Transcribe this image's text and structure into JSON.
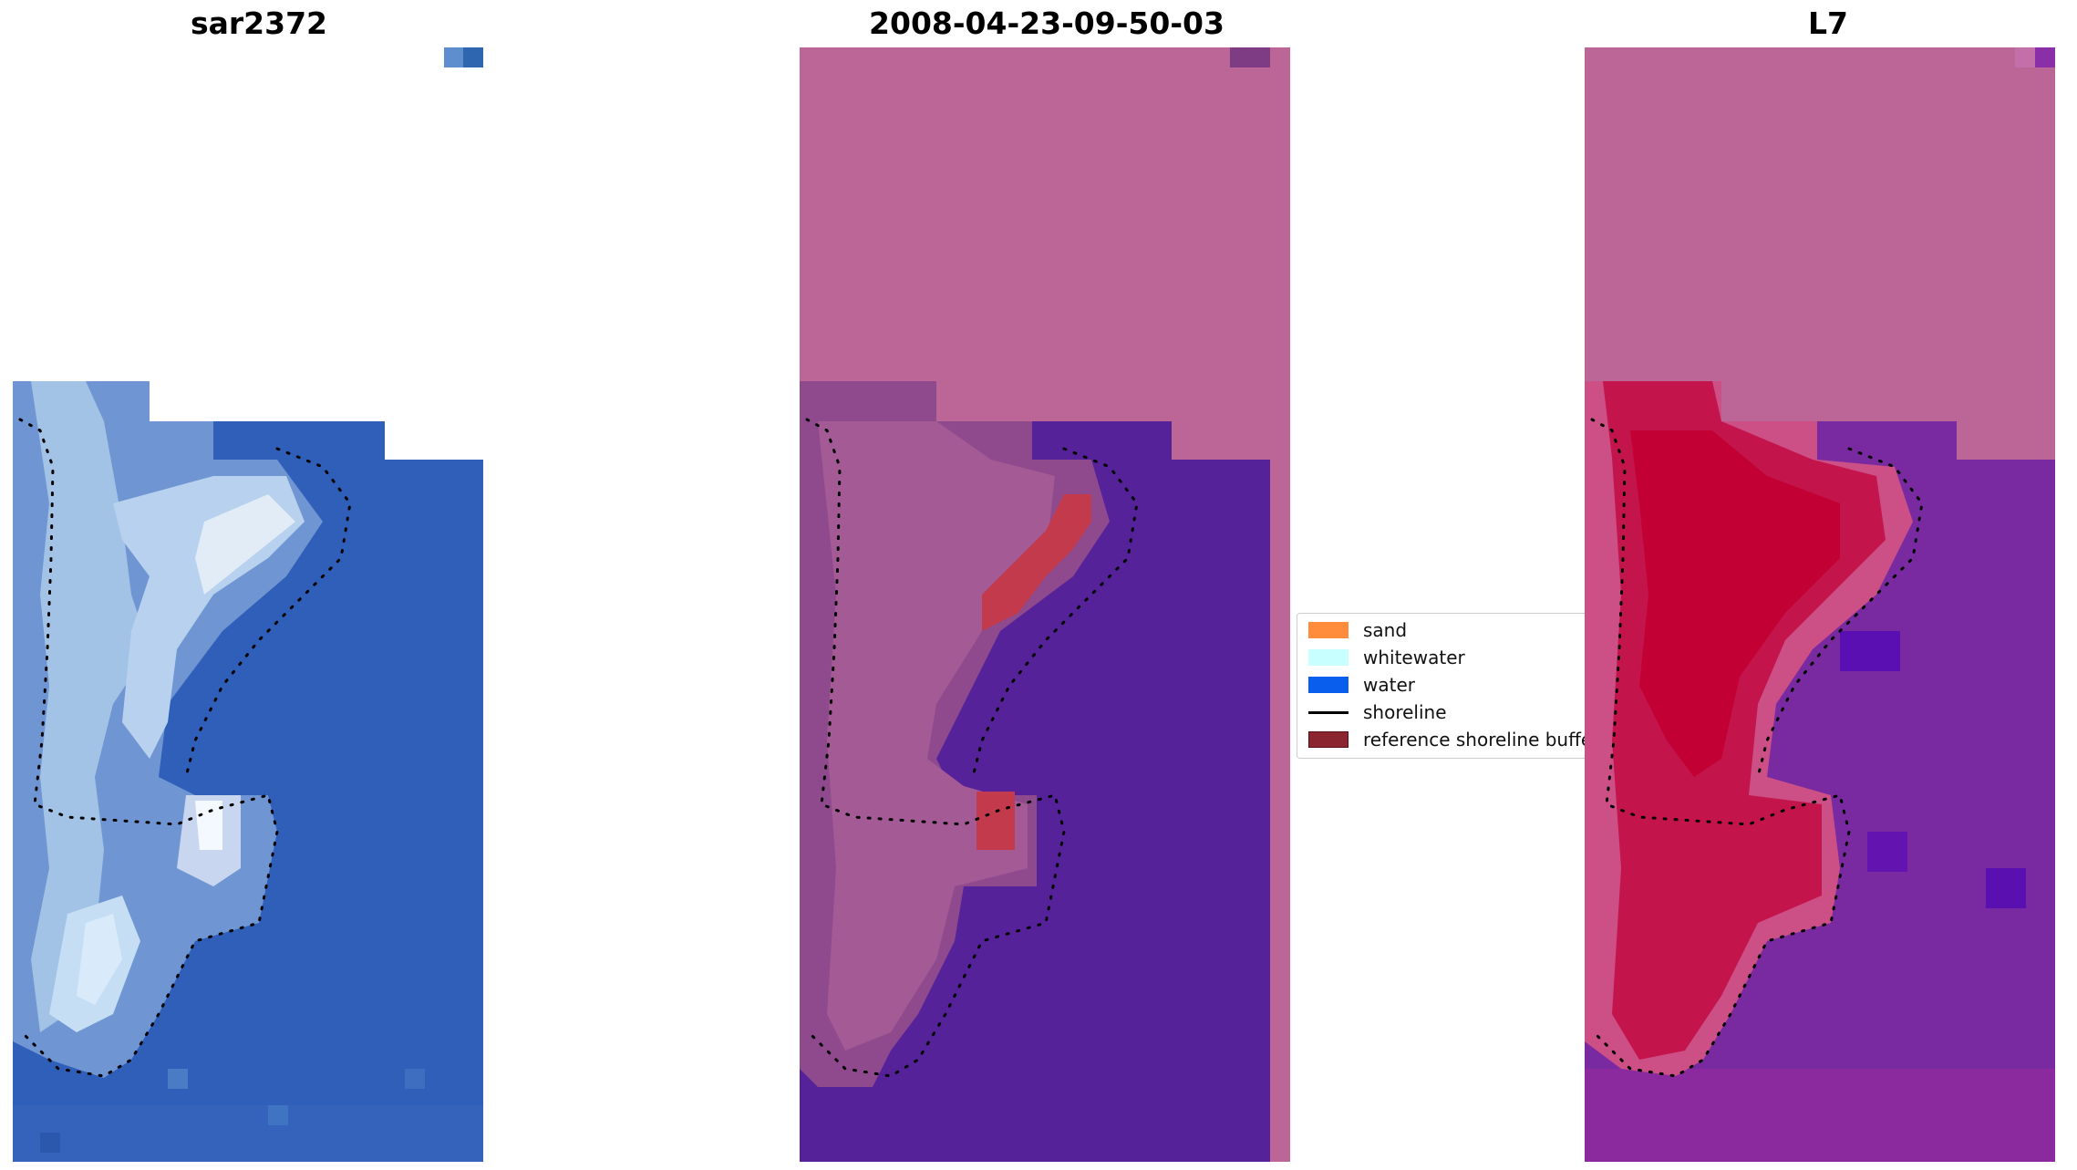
{
  "panels": [
    {
      "title": "sar2372"
    },
    {
      "title": "2008-04-23-09-50-03"
    },
    {
      "title": "L7"
    }
  ],
  "legend": {
    "items": [
      {
        "label": "sand",
        "kind": "patch",
        "color": "#ff8b3d"
      },
      {
        "label": "whitewater",
        "kind": "patch",
        "color": "#c8ffff"
      },
      {
        "label": "water",
        "kind": "patch",
        "color": "#0a5eee"
      },
      {
        "label": "shoreline",
        "kind": "line",
        "color": "#000000"
      },
      {
        "label": "reference shoreline buffer",
        "kind": "patch",
        "color": "#8b2530"
      }
    ]
  },
  "colors": {
    "sea_blue": "#2f5fb8",
    "class_water": "#55229a",
    "nodata_pink": "#bb6697",
    "sand_red": "#c0033a",
    "buffer_red": "#c23a4c",
    "shoreline_dots": "#000000"
  }
}
